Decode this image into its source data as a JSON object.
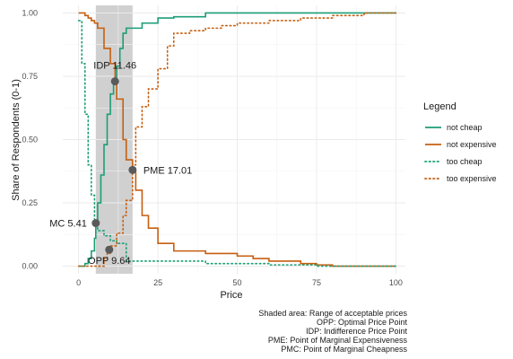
{
  "chart_data": {
    "type": "line",
    "xlabel": "Price",
    "ylabel": "Share of Respondents (0-1)",
    "xlim": [
      -5,
      103
    ],
    "ylim": [
      -0.03,
      1.03
    ],
    "x_ticks": [
      0,
      25,
      50,
      75,
      100
    ],
    "y_ticks": [
      0.0,
      0.25,
      0.5,
      0.75,
      1.0
    ],
    "x_tick_labels": [
      "0",
      "25",
      "50",
      "75",
      "100"
    ],
    "y_tick_labels": [
      "0.00",
      "0.25",
      "0.50",
      "0.75",
      "1.00"
    ],
    "grid": true,
    "shaded_range": [
      5.41,
      17.01
    ],
    "legend": {
      "title": "Legend",
      "placement": "right"
    },
    "series": [
      {
        "name": "not cheap",
        "color": "#1b9e77",
        "style": "solid",
        "x": [
          0,
          1,
          2,
          3,
          4,
          5,
          5.4,
          6,
          7,
          8,
          9,
          10,
          11,
          12,
          13,
          14,
          15,
          17,
          20,
          25,
          30,
          40,
          50,
          60,
          75,
          100
        ],
        "y": [
          0,
          0.0,
          0.01,
          0.03,
          0.06,
          0.11,
          0.16,
          0.25,
          0.36,
          0.48,
          0.6,
          0.68,
          0.73,
          0.79,
          0.86,
          0.92,
          0.94,
          0.94,
          0.96,
          0.98,
          0.985,
          1.0,
          1.0,
          1.0,
          1.0,
          1.0
        ]
      },
      {
        "name": "not expensive",
        "color": "#c65f10",
        "style": "solid",
        "x": [
          0,
          1,
          2,
          3,
          4,
          5,
          6,
          8,
          10,
          11.5,
          12,
          14,
          15,
          17,
          18,
          20,
          22,
          25,
          30,
          40,
          50,
          55,
          60,
          70,
          75,
          80,
          100
        ],
        "y": [
          1.0,
          1.0,
          0.99,
          0.98,
          0.97,
          0.96,
          0.94,
          0.86,
          0.8,
          0.73,
          0.66,
          0.5,
          0.42,
          0.37,
          0.3,
          0.2,
          0.15,
          0.09,
          0.06,
          0.05,
          0.04,
          0.03,
          0.02,
          0.01,
          0.005,
          0.0,
          0.0
        ]
      },
      {
        "name": "too cheap",
        "color": "#1b9e77",
        "style": "dotted",
        "x": [
          0,
          1,
          2,
          3,
          4,
          5,
          6,
          8,
          10,
          12,
          14,
          15,
          17,
          20,
          25,
          30,
          40,
          50,
          60,
          75,
          80,
          100
        ],
        "y": [
          0.97,
          0.8,
          0.6,
          0.4,
          0.28,
          0.17,
          0.14,
          0.12,
          0.1,
          0.09,
          0.09,
          0.02,
          0.02,
          0.02,
          0.02,
          0.02,
          0.01,
          0.01,
          0.005,
          0.0,
          0.0,
          0.0
        ]
      },
      {
        "name": "too expensive",
        "color": "#c65f10",
        "style": "dotted",
        "x": [
          0,
          5,
          8,
          9,
          10,
          12,
          14,
          15,
          17,
          18,
          20,
          22,
          25,
          28,
          30,
          35,
          40,
          45,
          50,
          60,
          70,
          80,
          90,
          100
        ],
        "y": [
          0.0,
          0.0,
          0.03,
          0.05,
          0.08,
          0.13,
          0.2,
          0.26,
          0.4,
          0.55,
          0.63,
          0.7,
          0.78,
          0.87,
          0.92,
          0.93,
          0.94,
          0.95,
          0.96,
          0.97,
          0.98,
          0.99,
          1.0,
          1.0
        ]
      }
    ],
    "points": [
      {
        "label": "IDP  11.46",
        "x": 11.46,
        "y": 0.73
      },
      {
        "label": "PME  17.01",
        "x": 17.01,
        "y": 0.38
      },
      {
        "label": "MC  5.41",
        "x": 5.41,
        "y": 0.17
      },
      {
        "label": "OPP  9.64",
        "x": 9.64,
        "y": 0.065
      }
    ],
    "caption": [
      "Shaded area: Range of acceptable prices",
      "OPP: Optimal Price Point",
      "IDP: Indifference Price Point",
      "PME: Point of Marginal Expensiveness",
      "PMC: Point of Marginal Cheapness"
    ]
  }
}
